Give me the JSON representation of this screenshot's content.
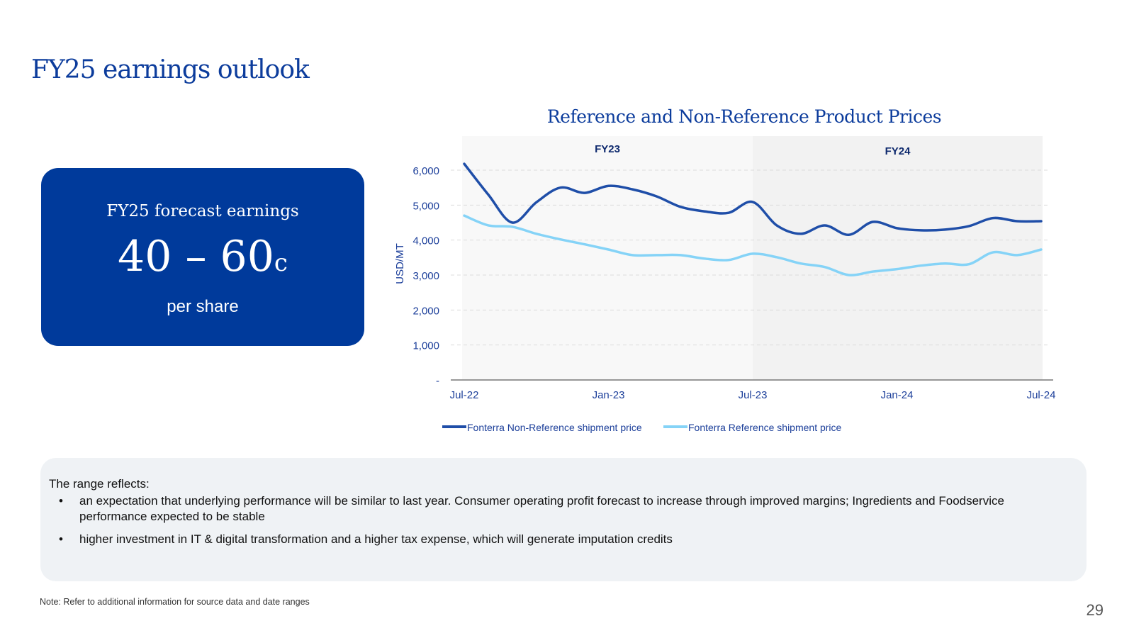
{
  "title": "FY25 earnings outlook",
  "forecast": {
    "label": "FY25 forecast earnings",
    "range": "40 – 60",
    "unit": "c",
    "sub": "per share"
  },
  "chart_data": {
    "type": "line",
    "title": "Reference and Non-Reference Product Prices",
    "ylabel": "USD/MT",
    "ylim": [
      0,
      6000
    ],
    "yticks": [
      "-",
      "1,000",
      "2,000",
      "3,000",
      "4,000",
      "5,000",
      "6,000"
    ],
    "xticks": [
      "Jul-22",
      "Jan-23",
      "Jul-23",
      "Jan-24",
      "Jul-24"
    ],
    "x": [
      "Jul-22",
      "Aug-22",
      "Sep-22",
      "Oct-22",
      "Nov-22",
      "Dec-22",
      "Jan-23",
      "Feb-23",
      "Mar-23",
      "Apr-23",
      "May-23",
      "Jun-23",
      "Jul-23",
      "Aug-23",
      "Sep-23",
      "Oct-23",
      "Nov-23",
      "Dec-23",
      "Jan-24",
      "Feb-24",
      "Mar-24",
      "Apr-24",
      "May-24",
      "Jun-24",
      "Jul-24"
    ],
    "periods": [
      {
        "label": "FY23",
        "from": "Jul-22",
        "to": "Jul-23",
        "color": "#f8f8f8"
      },
      {
        "label": "FY24",
        "from": "Jul-23",
        "to": "Jul-24",
        "color": "#f2f2f2"
      }
    ],
    "grid": true,
    "legend": "bottom",
    "series": [
      {
        "name": "Fonterra Non-Reference shipment price",
        "color": "#1f4ea8",
        "values": [
          6180,
          5300,
          4500,
          5080,
          5500,
          5350,
          5550,
          5450,
          5250,
          4950,
          4820,
          4780,
          5090,
          4420,
          4180,
          4420,
          4150,
          4520,
          4340,
          4280,
          4300,
          4400,
          4630,
          4540,
          4540
        ]
      },
      {
        "name": "Fonterra Reference shipment price",
        "color": "#85d3f7",
        "values": [
          4700,
          4420,
          4380,
          4180,
          4020,
          3880,
          3730,
          3570,
          3570,
          3570,
          3470,
          3430,
          3610,
          3510,
          3330,
          3230,
          3000,
          3100,
          3170,
          3270,
          3330,
          3310,
          3650,
          3570,
          3730
        ]
      }
    ]
  },
  "panel": {
    "heading": "The range reflects:",
    "bullets": [
      "an expectation that underlying performance will be similar to last year. Consumer operating profit forecast to increase through improved margins; Ingredients and Foodservice performance expected to be stable",
      "higher investment in IT & digital transformation and a higher tax expense, which will generate imputation credits"
    ]
  },
  "note": "Note: Refer to additional information for source data and date ranges",
  "page_number": "29"
}
